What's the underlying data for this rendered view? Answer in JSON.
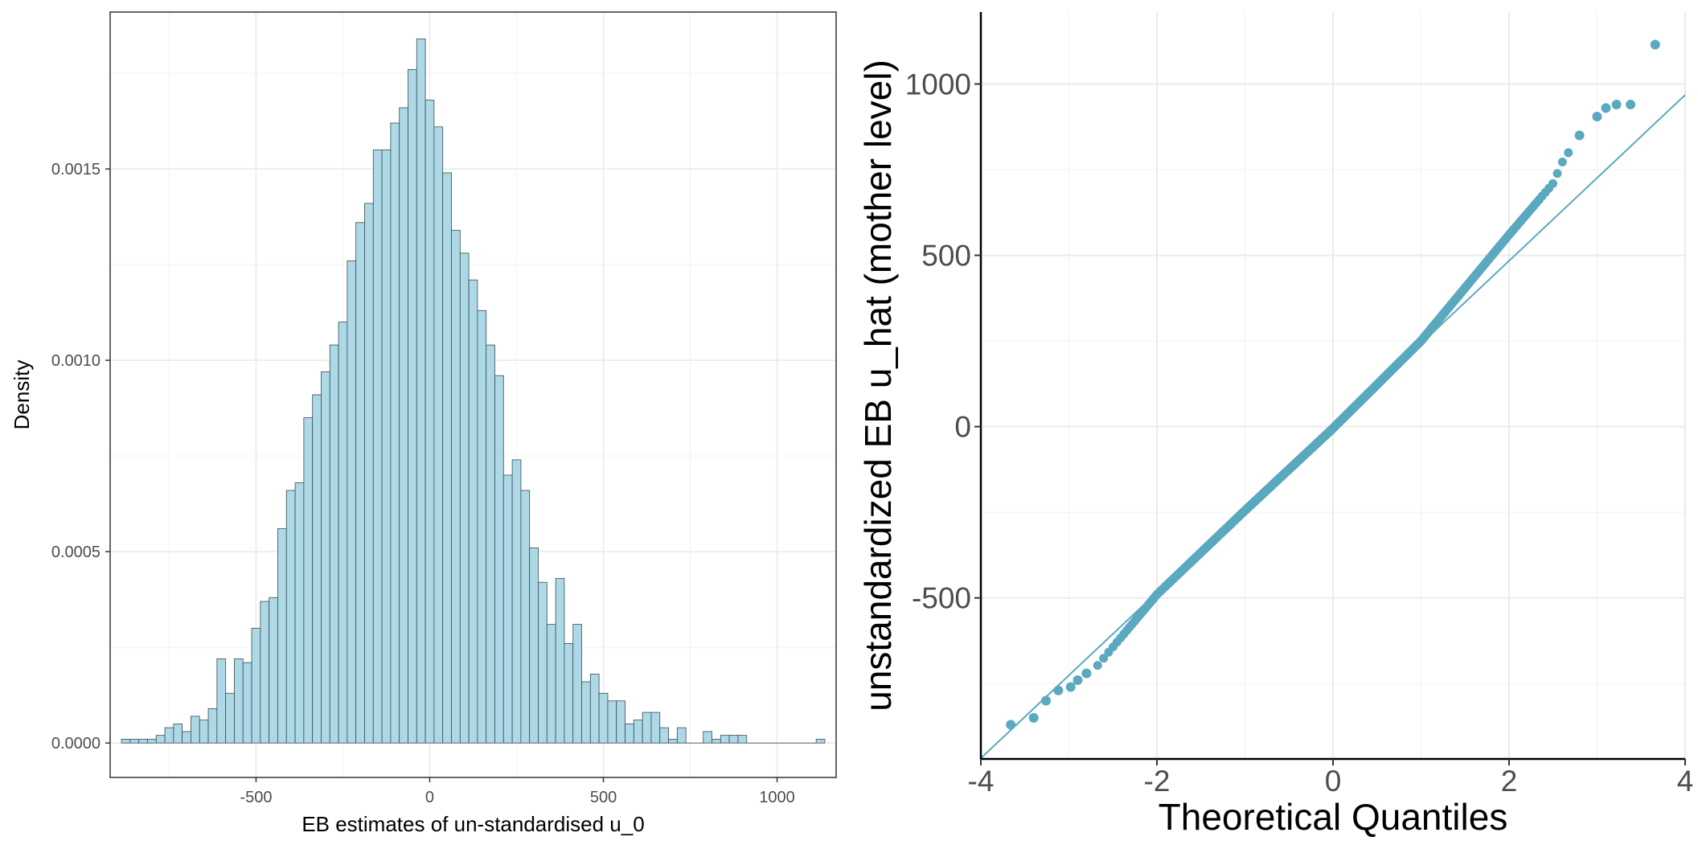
{
  "chart_data": [
    {
      "type": "bar",
      "subtype": "histogram",
      "xlabel": "EB estimates of un-standardised u_0",
      "ylabel": "Density",
      "xlim": [
        -920,
        1170
      ],
      "ylim": [
        -9e-05,
        0.00191
      ],
      "xticks": [
        -500,
        0,
        500,
        1000
      ],
      "xtick_labels": [
        "-500",
        "0",
        "500",
        "1000"
      ],
      "yticks": [
        0,
        0.0005,
        0.001,
        0.0015
      ],
      "ytick_labels": [
        "0.0000",
        "0.0005",
        "0.0010",
        "0.0015"
      ],
      "grid": true,
      "panel_border": true,
      "colors": {
        "fill": "#add8e6",
        "outline": "#3a4d54"
      },
      "bin_width": 25,
      "bin_start": -887.5,
      "values": [
        1e-05,
        1e-05,
        1e-05,
        1e-05,
        2e-05,
        4e-05,
        5e-05,
        3e-05,
        7e-05,
        6e-05,
        9e-05,
        0.00022,
        0.00013,
        0.00022,
        0.00021,
        0.0003,
        0.00037,
        0.00038,
        0.00056,
        0.00066,
        0.00068,
        0.00085,
        0.00091,
        0.00097,
        0.00104,
        0.0011,
        0.00126,
        0.00136,
        0.00141,
        0.00155,
        0.00155,
        0.00162,
        0.00166,
        0.00176,
        0.00184,
        0.00168,
        0.00161,
        0.00149,
        0.00134,
        0.00128,
        0.00121,
        0.00113,
        0.00104,
        0.00096,
        0.0007,
        0.00074,
        0.00066,
        0.00051,
        0.00042,
        0.00031,
        0.00043,
        0.00026,
        0.00031,
        0.00016,
        0.00018,
        0.00013,
        0.00011,
        0.00011,
        5e-05,
        6e-05,
        8e-05,
        8e-05,
        4e-05,
        1e-05,
        4e-05,
        0,
        0,
        3e-05,
        1e-05,
        2e-05,
        2e-05,
        2e-05,
        0,
        0,
        0,
        0,
        0,
        0,
        0,
        0,
        1e-05
      ]
    },
    {
      "type": "scatter",
      "subtype": "qq-plot",
      "xlabel": "Theoretical Quantiles",
      "ylabel": "unstandardized EB u_hat (mother level)",
      "xlim": [
        -4,
        4
      ],
      "ylim": [
        -970,
        1210
      ],
      "xticks": [
        -4,
        -2,
        0,
        2,
        4
      ],
      "xtick_labels": [
        "-4",
        "-2",
        "0",
        "2",
        "4"
      ],
      "yticks": [
        -500,
        0,
        500,
        1000
      ],
      "ytick_labels": [
        "-500",
        "0",
        "500",
        "1000"
      ],
      "grid": true,
      "colors": {
        "points": "#5aa9bf",
        "line": "#5aa9bf"
      },
      "reference_line": {
        "intercept": 0,
        "slope": 242
      },
      "n_points": 1200,
      "points_sample": [
        [
          -3.66,
          -870
        ],
        [
          -3.4,
          -850
        ],
        [
          -3.26,
          -800
        ],
        [
          -3.12,
          -770
        ],
        [
          -2.98,
          -760
        ],
        [
          -2.9,
          -740
        ],
        [
          -2.8,
          -720
        ],
        [
          -2.7,
          -705
        ],
        [
          -2.0,
          -490
        ],
        [
          -1.0,
          -245
        ],
        [
          0.0,
          -5
        ],
        [
          1.0,
          250
        ],
        [
          1.5,
          405
        ],
        [
          2.0,
          560
        ],
        [
          2.5,
          710
        ],
        [
          2.6,
          770
        ],
        [
          2.8,
          850
        ],
        [
          3.0,
          905
        ],
        [
          3.1,
          930
        ],
        [
          3.22,
          940
        ],
        [
          3.38,
          940
        ],
        [
          3.66,
          1115
        ]
      ]
    }
  ]
}
